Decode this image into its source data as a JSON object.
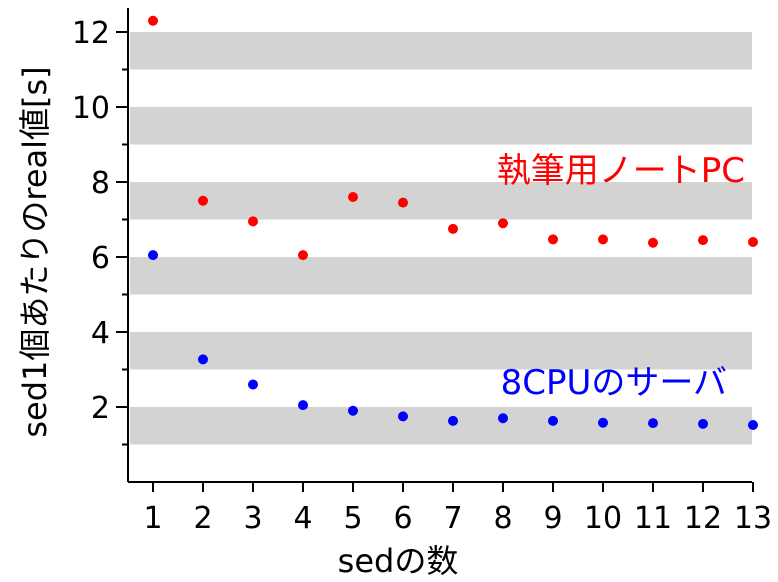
{
  "chart_data": {
    "type": "scatter",
    "title": "",
    "xlabel": "sedの数",
    "ylabel": "sed1個あたりのreal値[s]",
    "xlim": [
      0.5,
      13
    ],
    "ylim": [
      0,
      12.6
    ],
    "x_ticks": [
      1,
      2,
      3,
      4,
      5,
      6,
      7,
      8,
      9,
      10,
      11,
      12,
      13
    ],
    "y_ticks": [
      2,
      4,
      6,
      8,
      10,
      12
    ],
    "grid": "horizontal gray bands",
    "band_color": "#d3d3d3",
    "legend": "inline labels near each series",
    "series": [
      {
        "name": "執筆用ノートPC",
        "color": "#ff0000",
        "x": [
          1,
          2,
          3,
          4,
          5,
          6,
          7,
          8,
          9,
          10,
          11,
          12,
          13
        ],
        "y": [
          12.3,
          7.5,
          6.95,
          6.05,
          7.6,
          7.45,
          6.75,
          6.9,
          6.47,
          6.47,
          6.38,
          6.45,
          6.4
        ]
      },
      {
        "name": "8CPUのサーバ",
        "color": "#0000ff",
        "x": [
          1,
          2,
          3,
          4,
          5,
          6,
          7,
          8,
          9,
          10,
          11,
          12,
          13
        ],
        "y": [
          6.05,
          3.27,
          2.6,
          2.05,
          1.9,
          1.75,
          1.63,
          1.7,
          1.63,
          1.58,
          1.57,
          1.55,
          1.52
        ]
      }
    ]
  }
}
